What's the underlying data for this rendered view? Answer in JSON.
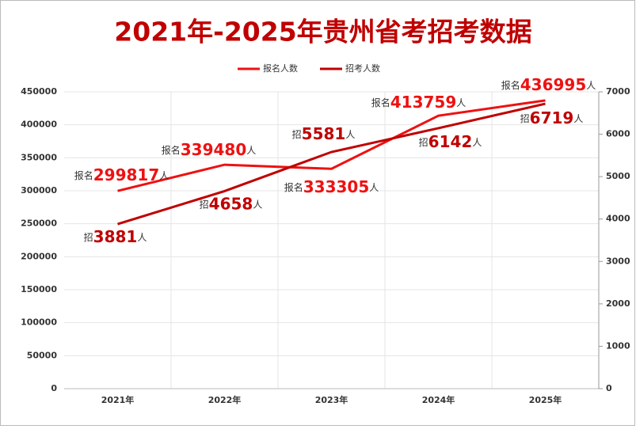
{
  "chart_data": {
    "type": "line",
    "title": "2021年-2025年贵州省考招考数据",
    "categories": [
      "2021年",
      "2022年",
      "2023年",
      "2024年",
      "2025年"
    ],
    "series": [
      {
        "name": "报名人数",
        "color": "#ee1111",
        "values": [
          299817,
          339480,
          333305,
          413759,
          436995
        ],
        "value_labels": [
          "报名299817人",
          "报名339480人",
          "报名333305人",
          "报名413759人",
          "报名436995人"
        ]
      },
      {
        "name": "招考人数",
        "color": "#c00000",
        "axis": "y2",
        "values": [
          3881,
          4658,
          5581,
          6142,
          6719
        ],
        "value_labels": [
          "招3881人",
          "招4658人",
          "招5581人",
          "招6142人",
          "招6719人"
        ]
      }
    ],
    "ylim": [
      0,
      450000
    ],
    "yticks": [
      0,
      50000,
      100000,
      150000,
      200000,
      250000,
      300000,
      350000,
      400000,
      450000
    ],
    "y2lim": [
      0,
      7000
    ],
    "y2ticks": [
      0,
      1000,
      2000,
      3000,
      4000,
      5000,
      6000,
      7000
    ],
    "grid": true,
    "legend": "top"
  }
}
